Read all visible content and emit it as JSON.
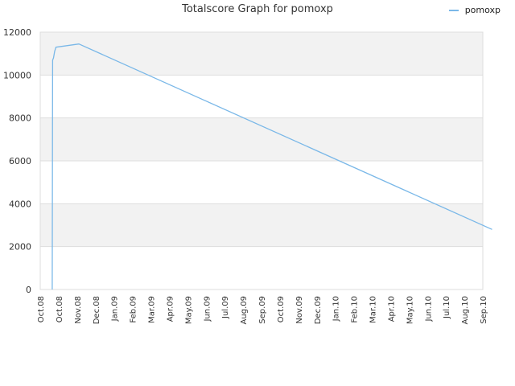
{
  "chart_data": {
    "type": "line",
    "title": "Totalscore Graph for pomoxp",
    "xlabel": "",
    "ylabel": "",
    "ylim": [
      0,
      12000
    ],
    "grid": true,
    "legend_position": "top-right",
    "y_ticks": [
      0,
      2000,
      4000,
      6000,
      8000,
      10000,
      12000
    ],
    "x_ticks": [
      "Oct.08",
      "Oct.08",
      "Nov.08",
      "Dec.08",
      "Jan.09",
      "Feb.09",
      "Mar.09",
      "Apr.09",
      "May.09",
      "Jun.09",
      "Jul.09",
      "Aug.09",
      "Sep.09",
      "Oct.09",
      "Nov.09",
      "Dec.09",
      "Jan.10",
      "Feb.10",
      "Mar.10",
      "Apr.10",
      "May.10",
      "Jun.10",
      "Jul.10",
      "Aug.10",
      "Sep.10"
    ],
    "series": [
      {
        "name": "pomoxp",
        "color": "#7ab8e8",
        "x": [
          0.65,
          0.67,
          0.72,
          0.78,
          0.85,
          2.1,
          24.5
        ],
        "y": [
          0,
          10700,
          10800,
          11100,
          11300,
          11450,
          2800
        ]
      }
    ]
  }
}
